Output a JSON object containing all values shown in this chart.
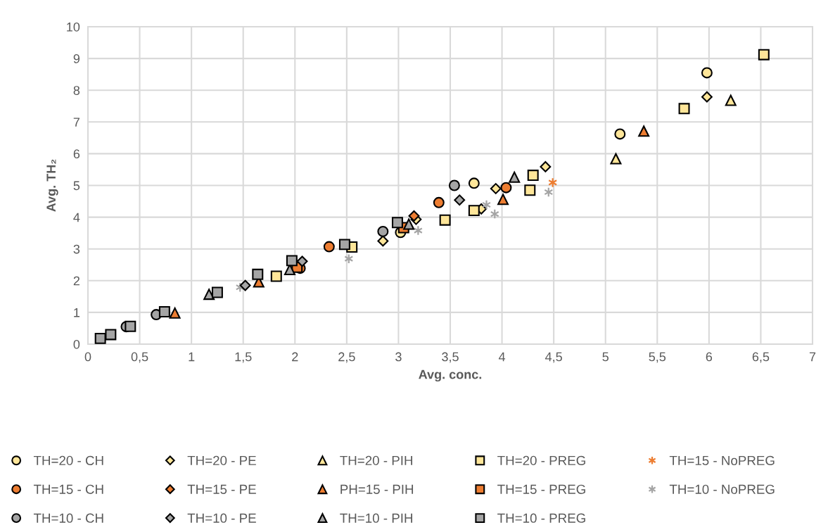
{
  "chart_data": {
    "type": "scatter",
    "xlabel": "Avg. conc.",
    "ylabel": "Avg. TH₂",
    "xlim": [
      0,
      7
    ],
    "ylim": [
      0,
      10
    ],
    "xticks": [
      0,
      {
        "value": 0.5,
        "label": "0,5"
      },
      1,
      {
        "value": 1.5,
        "label": "1,5"
      },
      2,
      {
        "value": 2.5,
        "label": "2,5"
      },
      3,
      {
        "value": 3.5,
        "label": "3,5"
      },
      4,
      {
        "value": 4.5,
        "label": "4,5"
      },
      5,
      {
        "value": 5.5,
        "label": "5,5"
      },
      6,
      {
        "value": 6.5,
        "label": "6,5"
      },
      7
    ],
    "yticks": [
      0,
      1,
      2,
      3,
      4,
      5,
      6,
      7,
      8,
      9,
      10
    ],
    "grid": true,
    "legend": "bottom",
    "series": [
      {
        "name": "TH=20 - CH",
        "color": "#ffe699",
        "marker": "circle",
        "x": [
          3.02,
          3.73,
          5.14,
          5.98
        ],
        "values": [
          3.52,
          5.07,
          6.62,
          8.55
        ]
      },
      {
        "name": "TH=20 - PE",
        "color": "#ffe699",
        "marker": "diamond",
        "x": [
          2.85,
          3.17,
          3.8,
          3.94,
          4.42,
          5.98
        ],
        "values": [
          3.25,
          3.93,
          4.26,
          4.9,
          5.59,
          7.79
        ]
      },
      {
        "name": "TH=20 - PIH",
        "color": "#ffe699",
        "marker": "triangle",
        "x": [
          5.1,
          6.21
        ],
        "values": [
          5.84,
          7.68
        ]
      },
      {
        "name": "TH=20 - PREG",
        "color": "#ffe699",
        "marker": "square",
        "x": [
          1.82,
          2.55,
          3.45,
          3.73,
          4.27,
          4.3,
          5.76,
          6.53
        ],
        "values": [
          2.14,
          3.06,
          3.91,
          4.21,
          4.85,
          5.32,
          7.42,
          9.12
        ]
      },
      {
        "name": "TH=15 - NoPREG",
        "color": "#ed7d31",
        "marker": "cross",
        "x": [
          4.49
        ],
        "values": [
          5.09
        ]
      },
      {
        "name": "TH=15 - CH",
        "color": "#ed7d31",
        "marker": "circle",
        "x": [
          2.05,
          2.33,
          3.39,
          4.04
        ],
        "values": [
          2.39,
          3.07,
          4.46,
          4.93
        ]
      },
      {
        "name": "TH=15 - PE",
        "color": "#ed7d31",
        "marker": "diamond",
        "x": [
          3.15
        ],
        "values": [
          4.04
        ]
      },
      {
        "name": "PH=15 - PIH",
        "color": "#ed7d31",
        "marker": "triangle",
        "x": [
          0.84,
          1.65,
          4.01,
          5.37
        ],
        "values": [
          0.98,
          1.96,
          4.56,
          6.71
        ]
      },
      {
        "name": "TH=15 - PREG",
        "color": "#ed7d31",
        "marker": "square",
        "x": [
          2.02,
          3.05
        ],
        "values": [
          2.42,
          3.67
        ]
      },
      {
        "name": "TH=10 - NoPREG",
        "color": "#a5a5a5",
        "marker": "cross",
        "x": [
          1.47,
          2.52,
          3.19,
          3.85,
          3.93,
          4.45
        ],
        "values": [
          1.79,
          2.69,
          3.58,
          4.39,
          4.1,
          4.79
        ]
      },
      {
        "name": "TH=10 - CH",
        "color": "#a5a5a5",
        "marker": "circle",
        "x": [
          0.37,
          0.66,
          2.85,
          3.54
        ],
        "values": [
          0.55,
          0.93,
          3.55,
          5.0
        ]
      },
      {
        "name": "TH=10 - PE",
        "color": "#a5a5a5",
        "marker": "diamond",
        "x": [
          1.52,
          2.07,
          3.59
        ],
        "values": [
          1.85,
          2.61,
          4.54
        ]
      },
      {
        "name": "TH=10 - PIH",
        "color": "#a5a5a5",
        "marker": "triangle",
        "x": [
          1.17,
          1.95,
          3.1,
          4.12
        ],
        "values": [
          1.57,
          2.35,
          3.78,
          5.26
        ]
      },
      {
        "name": "TH=10 - PREG",
        "color": "#a5a5a5",
        "marker": "square",
        "x": [
          0.12,
          0.22,
          0.41,
          0.74,
          1.25,
          1.64,
          1.97,
          2.48,
          2.99
        ],
        "values": [
          0.18,
          0.3,
          0.56,
          1.02,
          1.63,
          2.2,
          2.63,
          3.14,
          3.83
        ]
      }
    ]
  }
}
